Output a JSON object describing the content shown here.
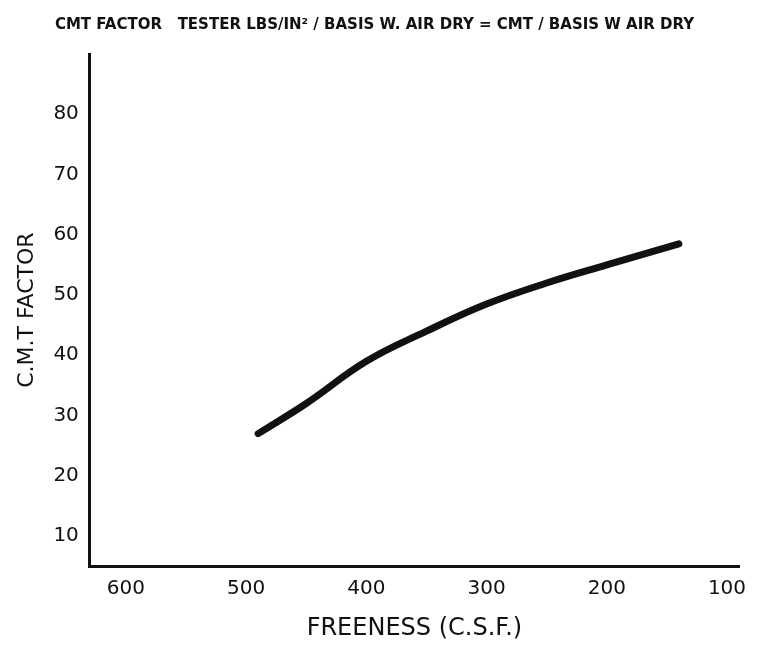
{
  "chart_data": {
    "type": "line",
    "title": "CMT FACTOR   TESTER LBS/IN² / BASIS W. AIR DRY = CMT / BASIS W AIR DRY",
    "x_label": "FREENESS (C.S.F.)",
    "y_label": "C.M.T FACTOR",
    "x": [
      490,
      450,
      400,
      350,
      300,
      250,
      200,
      140
    ],
    "values": [
      27,
      32,
      39,
      44,
      48.5,
      52,
      55,
      58.5
    ],
    "color": "#111111",
    "xlim": [
      630,
      90
    ],
    "xticks": [
      600,
      500,
      400,
      300,
      200,
      100
    ],
    "ylim": [
      5,
      90
    ],
    "yticks": [
      10,
      20,
      30,
      40,
      50,
      60,
      70,
      80
    ],
    "grid": false
  }
}
